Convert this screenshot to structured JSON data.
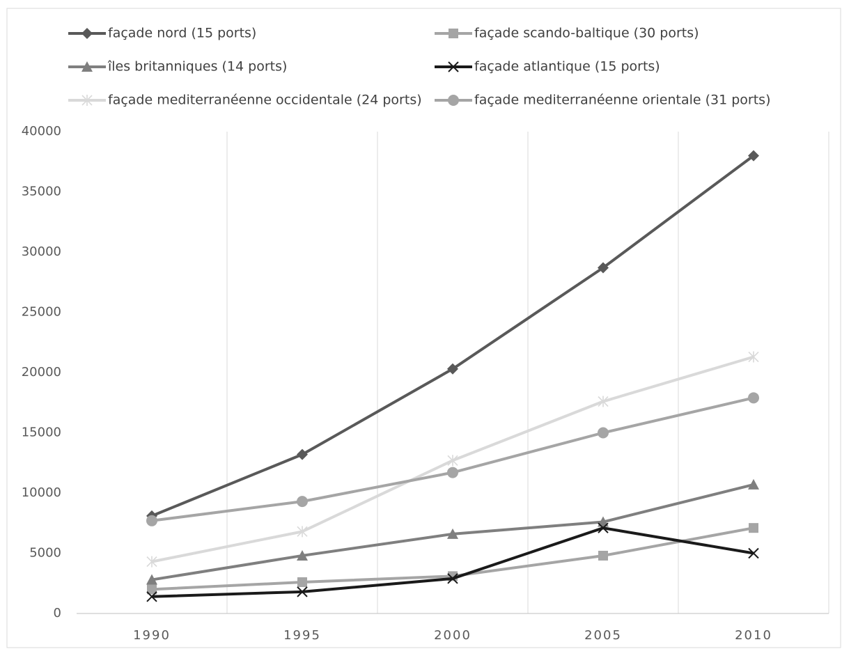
{
  "chart_data": {
    "type": "line",
    "categories": [
      "1990",
      "1995",
      "2000",
      "2005",
      "2010"
    ],
    "series": [
      {
        "name": "façade nord (15 ports)",
        "color": "#595959",
        "marker": "diamond",
        "values": [
          8100,
          13200,
          20300,
          28700,
          38000
        ]
      },
      {
        "name": "façade scando-baltique (30 ports)",
        "color": "#a5a5a5",
        "marker": "square",
        "values": [
          2000,
          2600,
          3100,
          4800,
          7100
        ]
      },
      {
        "name": "îles britanniques (14 ports)",
        "color": "#7f7f7f",
        "marker": "triangle",
        "values": [
          2800,
          4800,
          6600,
          7600,
          10700
        ]
      },
      {
        "name": "façade atlantique (15 ports)",
        "color": "#1a1a1a",
        "marker": "x",
        "values": [
          1400,
          1800,
          2900,
          7100,
          5000
        ]
      },
      {
        "name": "façade mediterranéenne occidentale (24 ports)",
        "color": "#d9d9d9",
        "marker": "star",
        "values": [
          4300,
          6800,
          12700,
          17600,
          21300
        ]
      },
      {
        "name": "façade mediterranéenne orientale (31 ports)",
        "color": "#a5a5a5",
        "marker": "circle",
        "values": [
          7700,
          9300,
          11700,
          15000,
          17900
        ]
      }
    ],
    "ylim": [
      0,
      40000
    ],
    "yticks": [
      0,
      5000,
      10000,
      15000,
      20000,
      25000,
      30000,
      35000,
      40000
    ],
    "grid": false,
    "x_grid": true,
    "legend": "top"
  }
}
